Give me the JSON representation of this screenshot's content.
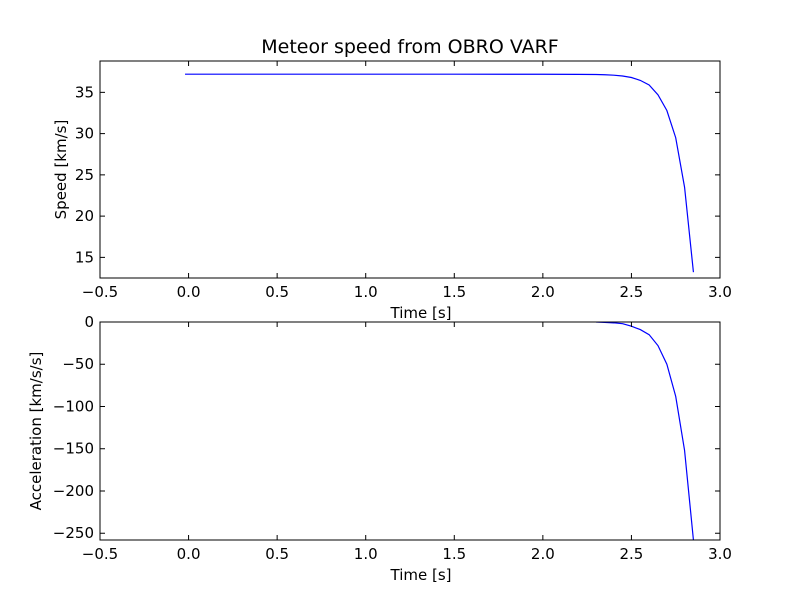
{
  "figure": {
    "title": "Meteor speed from  OBRO VARF"
  },
  "chart_data": [
    {
      "type": "line",
      "xlabel": "Time [s]",
      "ylabel": "Speed [km/s]",
      "xlim": [
        -0.5,
        3.0
      ],
      "ylim": [
        12.5,
        38.8
      ],
      "xticks": [
        -0.5,
        0.0,
        0.5,
        1.0,
        1.5,
        2.0,
        2.5,
        3.0
      ],
      "xtick_labels": [
        "−0.5",
        "0.0",
        "0.5",
        "1.0",
        "1.5",
        "2.0",
        "2.5",
        "3.0"
      ],
      "yticks": [
        15,
        20,
        25,
        30,
        35
      ],
      "ytick_labels": [
        "15",
        "20",
        "25",
        "30",
        "35"
      ],
      "grid": false,
      "series": [
        {
          "color": "#0000ff",
          "x": [
            -0.02,
            0.5,
            1.0,
            1.5,
            2.0,
            2.2,
            2.3,
            2.35,
            2.4,
            2.45,
            2.5,
            2.55,
            2.6,
            2.65,
            2.7,
            2.75,
            2.8,
            2.85
          ],
          "y": [
            37.2,
            37.2,
            37.2,
            37.2,
            37.19,
            37.18,
            37.16,
            37.13,
            37.08,
            36.98,
            36.8,
            36.45,
            35.9,
            34.7,
            32.8,
            29.5,
            23.5,
            13.2
          ]
        }
      ]
    },
    {
      "type": "line",
      "xlabel": "Time [s]",
      "ylabel": "Acceleration [km/s/s]",
      "xlim": [
        -0.5,
        3.0
      ],
      "ylim": [
        -258,
        0
      ],
      "xticks": [
        -0.5,
        0.0,
        0.5,
        1.0,
        1.5,
        2.0,
        2.5,
        3.0
      ],
      "xtick_labels": [
        "−0.5",
        "0.0",
        "0.5",
        "1.0",
        "1.5",
        "2.0",
        "2.5",
        "3.0"
      ],
      "yticks": [
        -250,
        -200,
        -150,
        -100,
        -50,
        0
      ],
      "ytick_labels": [
        "−250",
        "−200",
        "−150",
        "−100",
        "−50",
        "0"
      ],
      "grid": false,
      "series": [
        {
          "color": "#0000ff",
          "x": [
            2.3,
            2.35,
            2.4,
            2.45,
            2.5,
            2.55,
            2.6,
            2.65,
            2.7,
            2.75,
            2.8,
            2.85
          ],
          "y": [
            0,
            -0.5,
            -1,
            -2,
            -5,
            -9,
            -15,
            -28,
            -50,
            -88,
            -152,
            -258
          ]
        }
      ]
    }
  ]
}
